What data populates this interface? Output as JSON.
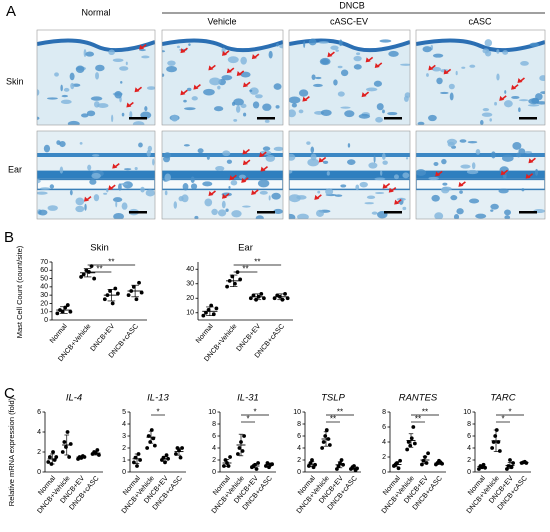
{
  "panel_a": {
    "label": "A",
    "group": "DNCB",
    "columns": [
      "Normal",
      "Vehicle",
      "cASC-EV",
      "cASC"
    ],
    "rows": [
      "Skin",
      "Ear"
    ]
  },
  "panel_b": {
    "label": "B",
    "y_label": "Mast Cell Count (count/site)"
  },
  "panel_c": {
    "label": "C",
    "y_label": "Relative mRNA expression (fold)"
  },
  "chart_data": [
    {
      "type": "dotplot",
      "title": "Skin",
      "categories": [
        "Normal",
        "DNCB+Vehicle",
        "DNCB+EV",
        "DNCB+cASC"
      ],
      "points": [
        [
          8,
          12,
          10,
          15,
          18,
          10
        ],
        [
          52,
          55,
          60,
          58,
          65,
          50
        ],
        [
          25,
          30,
          35,
          20,
          38,
          32
        ],
        [
          30,
          35,
          40,
          25,
          45,
          33
        ]
      ],
      "means": [
        12,
        57,
        30,
        35
      ],
      "errors": [
        4,
        5,
        7,
        7
      ],
      "ylim": [
        0,
        70
      ],
      "yticks": [
        0,
        10,
        20,
        30,
        40,
        50,
        60,
        70
      ],
      "significance": [
        {
          "text": "**",
          "between": [
            "DNCB+Vehicle",
            "DNCB+EV"
          ]
        },
        {
          "text": "**",
          "between": [
            "DNCB+Vehicle",
            "DNCB+cASC"
          ]
        }
      ]
    },
    {
      "type": "dotplot",
      "title": "Ear",
      "categories": [
        "Normal",
        "DNCB+Vehicle",
        "DNCB+EV",
        "DNCB+cASC"
      ],
      "points": [
        [
          8,
          10,
          12,
          15,
          9,
          13
        ],
        [
          28,
          32,
          35,
          30,
          38,
          33
        ],
        [
          20,
          22,
          19,
          21,
          23,
          20
        ],
        [
          20,
          22,
          21,
          19,
          23,
          20
        ]
      ],
      "means": [
        11,
        32,
        21,
        21
      ],
      "errors": [
        3,
        4,
        2,
        2
      ],
      "ylim": [
        5,
        45
      ],
      "yticks": [
        10,
        20,
        30,
        40
      ],
      "significance": [
        {
          "text": "**",
          "between": [
            "DNCB+Vehicle",
            "DNCB+EV"
          ]
        },
        {
          "text": "**",
          "between": [
            "DNCB+Vehicle",
            "DNCB+cASC"
          ]
        }
      ]
    },
    {
      "type": "dotplot",
      "title": "IL-4",
      "categories": [
        "Normal",
        "DNCB+Vehicle",
        "DNCB+EV",
        "DNCB+cASC"
      ],
      "points": [
        [
          1.0,
          1.5,
          0.8,
          2.0,
          1.2,
          1.5
        ],
        [
          2,
          3,
          2.5,
          4,
          1.5,
          2.8
        ],
        [
          1.3,
          1.5,
          1.4,
          1.6,
          1.5
        ],
        [
          1.8,
          2,
          1.9,
          2.2,
          1.7
        ]
      ],
      "means": [
        1.3,
        2.7,
        1.5,
        1.9
      ],
      "errors": [
        0.5,
        1.0,
        0.1,
        0.2
      ],
      "ylim": [
        0,
        6
      ],
      "yticks": [
        0,
        2,
        4,
        6
      ],
      "significance": []
    },
    {
      "type": "dotplot",
      "title": "IL-13",
      "categories": [
        "Normal",
        "DNCB+Vehicle",
        "DNCB+EV",
        "DNCB+cASC"
      ],
      "points": [
        [
          0.8,
          1.2,
          0.5,
          1.5,
          1
        ],
        [
          2,
          3,
          2.5,
          3.5,
          2.8,
          2.2
        ],
        [
          1,
          1.2,
          0.8,
          1.4,
          1.1
        ],
        [
          1.5,
          2,
          1.8,
          1.2,
          2
        ]
      ],
      "means": [
        1.1,
        2.9,
        1.1,
        1.7
      ],
      "errors": [
        0.4,
        0.5,
        0.2,
        0.3
      ],
      "ylim": [
        0,
        5
      ],
      "yticks": [
        0,
        1,
        2,
        3,
        4,
        5
      ],
      "significance": [
        {
          "text": "*",
          "between": [
            "DNCB+Vehicle",
            "DNCB+EV"
          ]
        }
      ]
    },
    {
      "type": "dotplot",
      "title": "IL-31",
      "categories": [
        "Normal",
        "DNCB+Vehicle",
        "DNCB+EV",
        "DNCB+cASC"
      ],
      "points": [
        [
          1,
          2,
          1.5,
          1,
          2.5
        ],
        [
          3,
          4,
          5,
          3.5,
          6
        ],
        [
          0.8,
          1,
          1.2,
          0.5,
          1.5
        ],
        [
          1,
          1.5,
          0.8,
          1.2,
          1.3
        ]
      ],
      "means": [
        1.5,
        4.5,
        1,
        1.2
      ],
      "errors": [
        0.6,
        1.8,
        0.3,
        0.3
      ],
      "ylim": [
        0,
        10
      ],
      "yticks": [
        0,
        2,
        4,
        6,
        8,
        10
      ],
      "significance": [
        {
          "text": "*",
          "between": [
            "DNCB+Vehicle",
            "DNCB+EV"
          ]
        },
        {
          "text": "*",
          "between": [
            "DNCB+Vehicle",
            "DNCB+cASC"
          ]
        }
      ]
    },
    {
      "type": "dotplot",
      "title": "TSLP",
      "categories": [
        "Normal",
        "DNCB+Vehicle",
        "DNCB+EV",
        "DNCB+cASC"
      ],
      "points": [
        [
          1,
          1.5,
          2,
          0.8,
          1.2
        ],
        [
          4,
          5,
          6,
          7,
          5.5,
          4.5
        ],
        [
          0.5,
          1,
          1.5,
          2,
          1.2
        ],
        [
          0.5,
          0.8,
          1,
          0.3,
          0.6
        ]
      ],
      "means": [
        1.3,
        5.5,
        1.2,
        0.6
      ],
      "errors": [
        0.4,
        1.2,
        0.5,
        0.2
      ],
      "ylim": [
        0,
        10
      ],
      "yticks": [
        0,
        2,
        4,
        6,
        8,
        10
      ],
      "significance": [
        {
          "text": "**",
          "between": [
            "DNCB+Vehicle",
            "DNCB+EV"
          ]
        },
        {
          "text": "**",
          "between": [
            "DNCB+Vehicle",
            "DNCB+cASC"
          ]
        }
      ]
    },
    {
      "type": "dotplot",
      "title": "RANTES",
      "categories": [
        "Normal",
        "DNCB+Vehicle",
        "DNCB+EV",
        "DNCB+cASC"
      ],
      "points": [
        [
          0.8,
          1,
          1.2,
          0.5,
          1.5
        ],
        [
          3,
          4,
          3.5,
          4.5,
          6,
          3.8
        ],
        [
          1,
          1.5,
          2,
          1.2,
          2.5
        ],
        [
          1,
          1.2,
          1.5,
          1.3,
          1.1
        ]
      ],
      "means": [
        1,
        4.2,
        1.6,
        1.2
      ],
      "errors": [
        0.3,
        0.9,
        0.5,
        0.2
      ],
      "ylim": [
        0,
        8
      ],
      "yticks": [
        0,
        2,
        4,
        6,
        8
      ],
      "significance": [
        {
          "text": "**",
          "between": [
            "DNCB+Vehicle",
            "DNCB+EV"
          ]
        },
        {
          "text": "**",
          "between": [
            "DNCB+Vehicle",
            "DNCB+cASC"
          ]
        }
      ]
    },
    {
      "type": "dotplot",
      "title": "TARC",
      "categories": [
        "Normal",
        "DNCB+Vehicle",
        "DNCB+EV",
        "DNCB+cASC"
      ],
      "points": [
        [
          0.5,
          1,
          0.8,
          1.2,
          0.7
        ],
        [
          4,
          5,
          6,
          7,
          5,
          3.5
        ],
        [
          0.5,
          1,
          2,
          0.8,
          1.5
        ],
        [
          1.5,
          1.6,
          1.7,
          1.5
        ]
      ],
      "means": [
        0.9,
        5.2,
        1.1,
        1.6
      ],
      "errors": [
        0.2,
        1.8,
        0.5,
        0.1
      ],
      "ylim": [
        0,
        10
      ],
      "yticks": [
        0,
        2,
        4,
        6,
        8,
        10
      ],
      "significance": [
        {
          "text": "*",
          "between": [
            "DNCB+Vehicle",
            "DNCB+EV"
          ]
        },
        {
          "text": "*",
          "between": [
            "DNCB+Vehicle",
            "DNCB+cASC"
          ]
        }
      ]
    }
  ]
}
